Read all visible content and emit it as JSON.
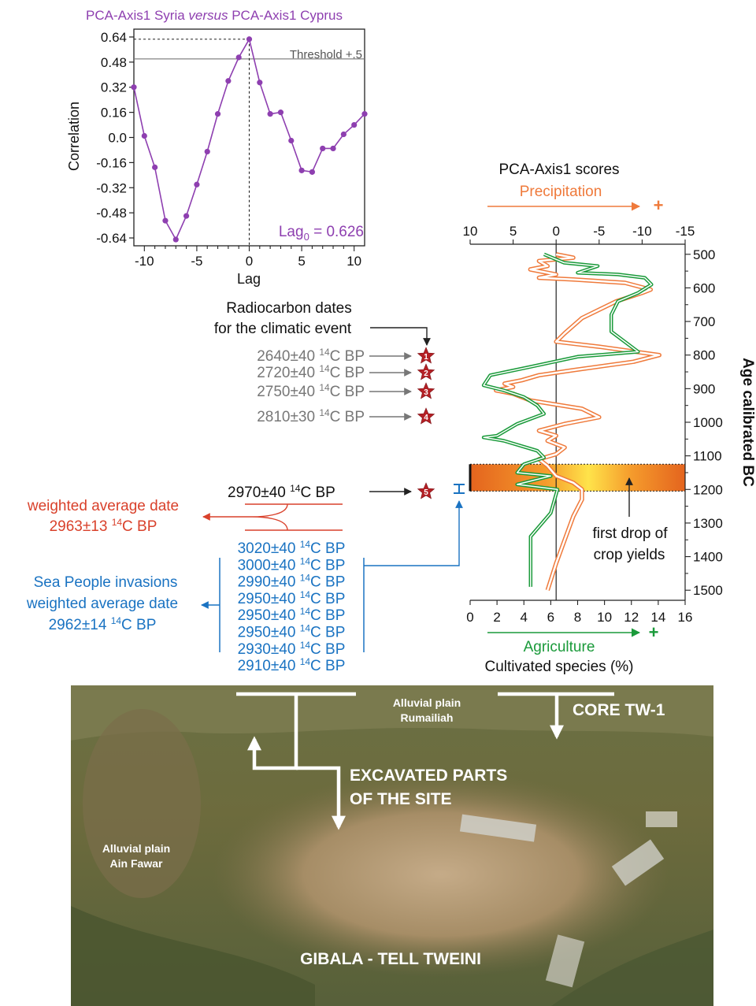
{
  "colors": {
    "purple": "#8e3fb0",
    "orange": "#ef7a3b",
    "green": "#1a9a3a",
    "red": "#d9412b",
    "blue": "#1a73c2",
    "gray": "#777777",
    "star": "#b52025"
  },
  "chart_data": [
    {
      "type": "line",
      "title": "PCA-Axis1 Syria versus PCA-Axis1 Cyprus",
      "title_parts": [
        "PCA-Axis1 Syria ",
        "versus",
        " PCA-Axis1 Cyprus"
      ],
      "xlabel": "Lag",
      "ylabel": "Correlation",
      "xlim": [
        -11,
        11
      ],
      "ylim": [
        -0.69,
        0.69
      ],
      "xticks": [
        "-10",
        "-5",
        "0",
        "5",
        "10"
      ],
      "yticks": [
        "0.64",
        "0.48",
        "0.32",
        "0.16",
        "0.0",
        "-0.16",
        "-0.32",
        "-0.48",
        "-0.64"
      ],
      "threshold": {
        "value": 0.5,
        "label": "Threshold +.5"
      },
      "annotation_main": "Lag",
      "annotation_sub": "0",
      "annotation_value": " = 0.626",
      "series": [
        {
          "x": [
            -11,
            -10,
            -9,
            -8,
            -7,
            -6,
            -5,
            -4,
            -3,
            -2,
            -1,
            0,
            1,
            2,
            3,
            4,
            5,
            6,
            7,
            8,
            9,
            10,
            11
          ],
          "y": [
            0.32,
            0.01,
            -0.19,
            -0.53,
            -0.65,
            -0.5,
            -0.3,
            -0.09,
            0.15,
            0.36,
            0.51,
            0.626,
            0.35,
            0.15,
            0.16,
            -0.02,
            -0.21,
            -0.22,
            -0.07,
            -0.07,
            0.02,
            0.08,
            0.15
          ]
        }
      ]
    },
    {
      "type": "line",
      "title": "PCA-Axis1 scores",
      "top_axis_label": "Precipitation",
      "top_ticks": [
        "10",
        "5",
        "0",
        "-5",
        "-10",
        "-15"
      ],
      "top_xlim": [
        10,
        -15
      ],
      "bottom_axis_label": "Agriculture",
      "bottom_axis_sublabel": "Cultivated species (%)",
      "bottom_ticks": [
        "0",
        "2",
        "4",
        "6",
        "8",
        "10",
        "12",
        "14",
        "16"
      ],
      "bottom_xlim": [
        0,
        16
      ],
      "ylabel": "Age calibrated BC",
      "ylim": [
        470,
        1530
      ],
      "yticks": [
        "500",
        "600",
        "700",
        "800",
        "900",
        "1000",
        "1100",
        "1200",
        "1300",
        "1400",
        "1500"
      ],
      "plus_sign": "+",
      "band": {
        "from": 1125,
        "to": 1205
      },
      "band_annotation": [
        "first drop of",
        "crop yields"
      ],
      "series": [
        {
          "name": "Precipitation",
          "axis": "top",
          "x": [
            0,
            -2,
            2,
            1,
            3,
            0,
            2,
            -2,
            -8,
            -11,
            -10,
            -7,
            -3,
            -1,
            0,
            -5,
            -12,
            -9,
            -2,
            2,
            4,
            6,
            5,
            7,
            5,
            3,
            -3,
            -5,
            -1,
            2,
            0,
            1,
            -1,
            0,
            2,
            1,
            0,
            -2,
            -3,
            -3,
            -2,
            -1,
            0,
            1
          ],
          "y": [
            500,
            510,
            520,
            535,
            545,
            560,
            570,
            575,
            585,
            605,
            615,
            640,
            690,
            735,
            760,
            775,
            800,
            820,
            845,
            860,
            875,
            885,
            895,
            905,
            915,
            935,
            960,
            985,
            1005,
            1025,
            1040,
            1055,
            1075,
            1095,
            1110,
            1130,
            1160,
            1180,
            1200,
            1230,
            1280,
            1350,
            1420,
            1500
          ]
        },
        {
          "name": "Agriculture",
          "axis": "bottom",
          "x": [
            5.5,
            7,
            9.5,
            8,
            11,
            13,
            13.5,
            12.5,
            11,
            10.5,
            10.5,
            12.5,
            8,
            4.5,
            1.5,
            1,
            2.5,
            4,
            5,
            5.5,
            3.5,
            2,
            1,
            2.5,
            5,
            5.5,
            4,
            3.5,
            6,
            4.5,
            3.5,
            6.5,
            6,
            4.5,
            4.5
          ],
          "y": [
            500,
            525,
            535,
            555,
            560,
            570,
            590,
            615,
            640,
            680,
            730,
            790,
            805,
            835,
            860,
            890,
            905,
            925,
            950,
            975,
            1005,
            1040,
            1045,
            1055,
            1085,
            1105,
            1125,
            1150,
            1160,
            1175,
            1185,
            1200,
            1270,
            1340,
            1490
          ]
        }
      ]
    }
  ],
  "radiocarbon": {
    "header_line1": "Radiocarbon dates",
    "header_line2": "for the climatic event",
    "star_dates": [
      {
        "pre": "2640±40 ",
        "sup": "14",
        "post": "C BP",
        "star": "1"
      },
      {
        "pre": "2720±40 ",
        "sup": "14",
        "post": "C BP",
        "star": "2"
      },
      {
        "pre": "2750±40 ",
        "sup": "14",
        "post": "C BP",
        "star": "3"
      },
      {
        "pre": "2810±30 ",
        "sup": "14",
        "post": "C BP",
        "star": "4"
      }
    ],
    "event_date": {
      "pre": "2970±40 ",
      "sup": "14",
      "post": "C BP",
      "star": "5"
    },
    "weighted_red_line1": "weighted average date",
    "weighted_red_line2_pre": "2963±13 ",
    "weighted_red_line2_sup": "14",
    "weighted_red_line2_post": "C BP",
    "blue_dates": [
      {
        "pre": "3020±40 ",
        "sup": "14",
        "post": "C BP"
      },
      {
        "pre": "3000±40 ",
        "sup": "14",
        "post": "C BP"
      },
      {
        "pre": "2990±40 ",
        "sup": "14",
        "post": "C BP"
      },
      {
        "pre": "2950±40 ",
        "sup": "14",
        "post": "C BP"
      },
      {
        "pre": "2950±40 ",
        "sup": "14",
        "post": "C BP"
      },
      {
        "pre": "2950±40 ",
        "sup": "14",
        "post": "C BP"
      },
      {
        "pre": "2930±40 ",
        "sup": "14",
        "post": "C BP"
      },
      {
        "pre": "2910±40 ",
        "sup": "14",
        "post": "C BP"
      }
    ],
    "sea_people_line1": "Sea People invasions",
    "sea_people_line2": "weighted average date",
    "sea_people_line3_pre": "2962±14 ",
    "sea_people_line3_sup": "14",
    "sea_people_line3_post": "C BP"
  },
  "photo": {
    "alluvial_rumailiah_1": "Alluvial plain",
    "alluvial_rumailiah_2": "Rumailiah",
    "core": "CORE TW-1",
    "excavated_1": "EXCAVATED PARTS",
    "excavated_2": "OF THE SITE",
    "alluvial_ain_1": "Alluvial plain",
    "alluvial_ain_2": "Ain Fawar",
    "site": "GIBALA - TELL TWEINI"
  }
}
